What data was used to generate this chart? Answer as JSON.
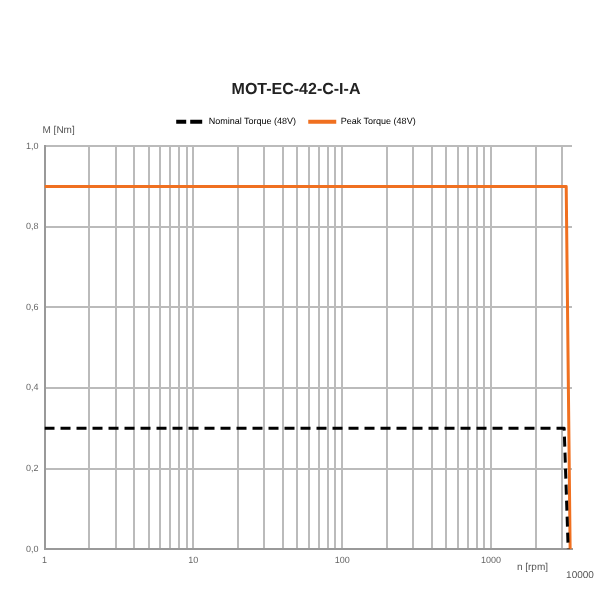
{
  "chart_data": {
    "type": "line",
    "title": "MOT-EC-42-C-I-A",
    "xlabel": "n [rpm]",
    "ylabel": "M [Nm]",
    "log": "x",
    "grid": true,
    "legend": "top",
    "marker": "none",
    "xlim": [
      1,
      3500
    ],
    "ylim": [
      0,
      1
    ],
    "xticks": [
      1,
      {
        "value": 2,
        "label": null
      },
      {
        "value": 3,
        "label": null
      },
      {
        "value": 4,
        "label": null
      },
      {
        "value": 5,
        "label": null
      },
      {
        "value": 6,
        "label": null
      },
      {
        "value": 7,
        "label": null
      },
      {
        "value": 8,
        "label": null
      },
      {
        "value": 9,
        "label": null
      },
      10,
      {
        "value": 20,
        "label": null
      },
      {
        "value": 30,
        "label": null
      },
      {
        "value": 40,
        "label": null
      },
      {
        "value": 50,
        "label": null
      },
      {
        "value": 60,
        "label": null
      },
      {
        "value": 70,
        "label": null
      },
      {
        "value": 80,
        "label": null
      },
      {
        "value": 90,
        "label": null
      },
      100,
      {
        "value": 200,
        "label": null
      },
      {
        "value": 300,
        "label": null
      },
      {
        "value": 400,
        "label": null
      },
      {
        "value": 500,
        "label": null
      },
      {
        "value": 600,
        "label": null
      },
      {
        "value": 700,
        "label": null
      },
      {
        "value": 800,
        "label": null
      },
      {
        "value": 900,
        "label": null
      },
      1000,
      {
        "value": 2000,
        "label": null
      },
      {
        "value": 3000,
        "label": null
      }
    ],
    "yticks": [
      {
        "value": 0,
        "label": "0,0"
      },
      {
        "value": 0.2,
        "label": "0,2"
      },
      {
        "value": 0.4,
        "label": "0,4"
      },
      {
        "value": 0.6,
        "label": "0,6"
      },
      {
        "value": 0.8,
        "label": "0,8"
      },
      {
        "value": 1,
        "label": "1,0"
      }
    ],
    "annotations": [
      "10000"
    ],
    "series": [
      {
        "name": "Nominal Torque (48V)",
        "color": "#000000",
        "line_style": "dashed",
        "x": [
          1,
          3100,
          3300
        ],
        "values": [
          0.3,
          0.3,
          0
        ]
      },
      {
        "name": "Peak Torque (48V)",
        "color": "#f07020",
        "line_style": "solid",
        "x": [
          1,
          3200,
          3400
        ],
        "values": [
          0.9,
          0.9,
          0
        ]
      }
    ]
  }
}
